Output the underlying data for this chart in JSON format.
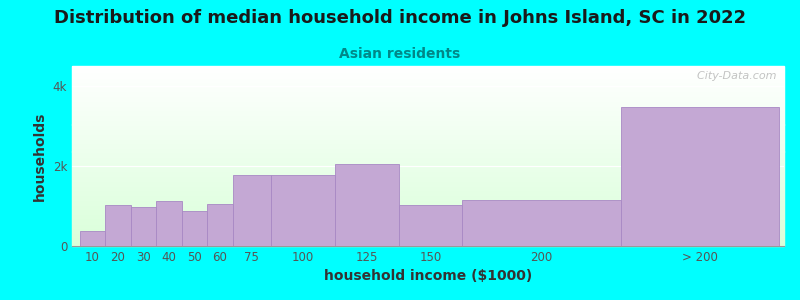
{
  "title": "Distribution of median household income in Johns Island, SC in 2022",
  "subtitle": "Asian residents",
  "xlabel": "household income ($1000)",
  "ylabel": "households",
  "background_color": "#00FFFF",
  "bar_color": "#C4A8D4",
  "bar_edge_color": "#A888C4",
  "categories": [
    "10",
    "20",
    "30",
    "40",
    "50",
    "60",
    "75",
    "100",
    "125",
    "150",
    "200",
    "> 200"
  ],
  "values": [
    380,
    1020,
    980,
    1120,
    870,
    1050,
    1780,
    1780,
    2050,
    1020,
    1150,
    3480
  ],
  "lefts": [
    3,
    13,
    23,
    33,
    43,
    53,
    63,
    78,
    103,
    128,
    153,
    215
  ],
  "widths": [
    10,
    10,
    10,
    10,
    10,
    10,
    15,
    25,
    25,
    25,
    62,
    62
  ],
  "ylim": [
    0,
    4500
  ],
  "ytick_vals": [
    0,
    2000,
    4000
  ],
  "ytick_labels": [
    "0",
    "2k",
    "4k"
  ],
  "title_fontsize": 13,
  "subtitle_fontsize": 10,
  "axis_label_fontsize": 10,
  "tick_fontsize": 8.5,
  "watermark": "  City-Data.com"
}
